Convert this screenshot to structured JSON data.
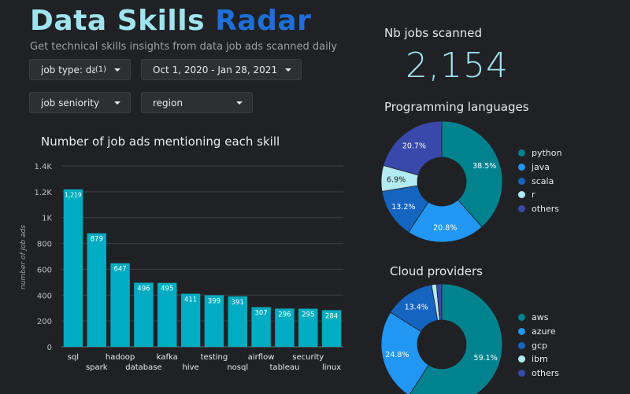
{
  "header": {
    "title_part1": "Data Skills",
    "title_part2": "Radar",
    "subtitle": "Get technical skills insights from data job ads scanned daily"
  },
  "filters": {
    "job_type": {
      "label": "job type: dat...",
      "count": "(1)"
    },
    "date_range": {
      "label": "Oct 1, 2020 - Jan 28, 2021"
    },
    "job_seniority": {
      "label": "job seniority"
    },
    "region": {
      "label": "region"
    }
  },
  "kpi": {
    "label": "Nb jobs scanned",
    "value": "2,154"
  },
  "colors": {
    "background": "#202124",
    "bar": "#00acc1",
    "title_light": "#9fe3ee",
    "title_accent": "#1e6fd9"
  },
  "chart_data": [
    {
      "type": "bar",
      "title": "Number of job ads mentioning each skill",
      "ylabel": "number of job ads",
      "xlabel": "",
      "categories": [
        "sql",
        "spark",
        "hadoop",
        "database",
        "kafka",
        "hive",
        "testing",
        "nosql",
        "airflow",
        "tableau",
        "security",
        "linux"
      ],
      "values": [
        1219,
        879,
        647,
        496,
        495,
        411,
        399,
        391,
        307,
        296,
        295,
        284
      ],
      "value_labels": [
        "1,219",
        "879",
        "647",
        "496",
        "495",
        "411",
        "399",
        "391",
        "307",
        "296",
        "295",
        "284"
      ],
      "ylim": [
        0,
        1400
      ],
      "yticks": [
        0,
        200,
        400,
        600,
        800,
        1000,
        1200,
        1400
      ],
      "ytick_labels": [
        "0",
        "200",
        "400",
        "600",
        "800",
        "1K",
        "1.2K",
        "1.4K"
      ],
      "grid": true
    },
    {
      "type": "pie",
      "donut": true,
      "title": "Programming languages",
      "legend_position": "right",
      "labels": [
        "python",
        "java",
        "scala",
        "r",
        "others"
      ],
      "values": [
        38.5,
        20.8,
        13.2,
        6.9,
        20.7
      ],
      "value_labels": [
        "38.5%",
        "20.8%",
        "13.2%",
        "6.9%",
        "20.7%"
      ],
      "colors": [
        "#00838f",
        "#2196f3",
        "#1565c0",
        "#b2ebf2",
        "#3949ab"
      ]
    },
    {
      "type": "pie",
      "donut": true,
      "title": "Cloud providers",
      "legend_position": "right",
      "labels": [
        "aws",
        "azure",
        "gcp",
        "ibm",
        "others"
      ],
      "values": [
        59.1,
        24.8,
        13.4,
        1.3,
        1.4
      ],
      "value_labels": [
        "59.1%",
        "24.8%",
        "13.4%",
        "",
        ""
      ],
      "colors": [
        "#00838f",
        "#2196f3",
        "#1565c0",
        "#b2ebf2",
        "#3949ab"
      ]
    }
  ]
}
